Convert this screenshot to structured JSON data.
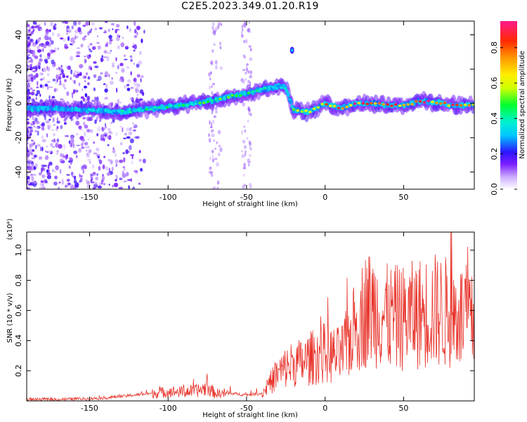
{
  "title": "C2E5.2023.349.01.20.R19",
  "chart_data": [
    {
      "type": "heatmap",
      "xlabel": "Height of straight line (km)",
      "ylabel": "Frequency (Hz)",
      "xlim": [
        -190,
        95
      ],
      "ylim": [
        -50,
        48
      ],
      "xticks": [
        -150,
        -100,
        -50,
        0,
        50
      ],
      "yticks": [
        -40,
        -20,
        0,
        20,
        40
      ],
      "colorbar": {
        "label": "Normalized spectral amplitude",
        "range": [
          0.0,
          0.95
        ],
        "ticks": [
          0.0,
          0.2,
          0.4,
          0.6,
          0.8
        ]
      },
      "ridge": {
        "x": [
          -190,
          -170,
          -150,
          -130,
          -110,
          -90,
          -70,
          -50,
          -40,
          -30,
          -25,
          -20,
          -10,
          0,
          10,
          20,
          30,
          40,
          50,
          60,
          70,
          80,
          95
        ],
        "y": [
          -3,
          -3,
          -4,
          -5,
          -3,
          -1,
          2,
          6,
          8,
          10,
          9,
          -4,
          -5,
          0,
          -3,
          0,
          0,
          -1,
          -1,
          1,
          1,
          -1,
          -1
        ],
        "amplitude": [
          0.2,
          0.3,
          0.35,
          0.35,
          0.4,
          0.4,
          0.45,
          0.45,
          0.45,
          0.35,
          0.35,
          0.45,
          0.6,
          0.75,
          0.75,
          0.8,
          0.8,
          0.8,
          0.75,
          0.8,
          0.8,
          0.8,
          0.7
        ]
      },
      "grid": false
    },
    {
      "type": "line",
      "xlabel": "Height of straight line (km)",
      "ylabel": "SNR (10 * v/v)",
      "yunit_label": "(x10⁴)",
      "xlim": [
        -190,
        95
      ],
      "ylim": [
        0,
        1.12
      ],
      "xticks": [
        -150,
        -100,
        -50,
        0,
        50
      ],
      "yticks": [
        0.2,
        0.4,
        0.6,
        0.8,
        1.0
      ],
      "series": [
        {
          "color": "#e8332a",
          "x": [
            -190,
            -170,
            -150,
            -140,
            -130,
            -120,
            -110,
            -100,
            -90,
            -80,
            -75,
            -70,
            -60,
            -50,
            -40,
            -35,
            -30,
            -25,
            -20,
            -15,
            -10,
            -5,
            0,
            5,
            10,
            15,
            20,
            25,
            30,
            40,
            50,
            60,
            70,
            80,
            90,
            95
          ],
          "y": [
            0.01,
            0.01,
            0.015,
            0.02,
            0.03,
            0.04,
            0.05,
            0.06,
            0.06,
            0.07,
            0.09,
            0.05,
            0.05,
            0.04,
            0.05,
            0.12,
            0.18,
            0.22,
            0.25,
            0.25,
            0.28,
            0.3,
            0.32,
            0.3,
            0.3,
            0.4,
            0.5,
            0.6,
            0.62,
            0.55,
            0.55,
            0.58,
            0.6,
            0.58,
            0.55,
            0.5
          ]
        }
      ],
      "grid": false
    }
  ]
}
